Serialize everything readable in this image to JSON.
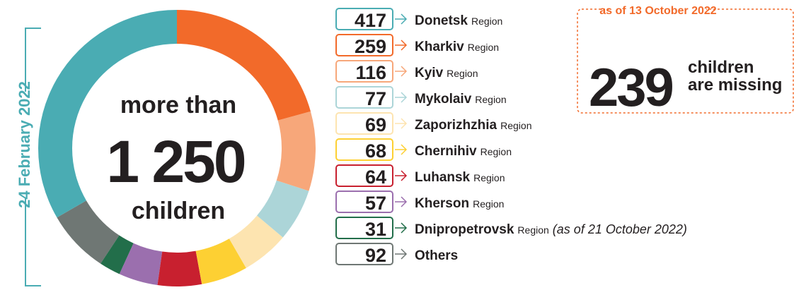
{
  "chart_data": {
    "type": "donut",
    "side_label": "24 February 2022",
    "center_lines": [
      "more than",
      "1 250",
      "children"
    ],
    "categories": [
      "Donetsk",
      "Kharkiv",
      "Kyiv",
      "Mykolaiv",
      "Zaporizhzhia",
      "Chernihiv",
      "Luhansk",
      "Kherson",
      "Dnipropetrovsk",
      "Others"
    ],
    "suffixes": [
      "Region",
      "Region",
      "Region",
      "Region",
      "Region",
      "Region",
      "Region",
      "Region",
      "Region",
      null
    ],
    "notes": [
      null,
      null,
      null,
      null,
      null,
      null,
      null,
      null,
      "(as of 21 October 2022)",
      null
    ],
    "values": [
      417,
      259,
      116,
      77,
      69,
      68,
      64,
      57,
      31,
      92
    ],
    "colors": [
      "#4aacb3",
      "#f26a2a",
      "#f7a77a",
      "#acd5d8",
      "#fde4b0",
      "#fdd033",
      "#c8202f",
      "#9b6fae",
      "#226e4a",
      "#6f7774"
    ],
    "callout": {
      "title": "as of 13 October 2022",
      "number": "239",
      "lines": [
        "children",
        "are missing"
      ]
    }
  }
}
